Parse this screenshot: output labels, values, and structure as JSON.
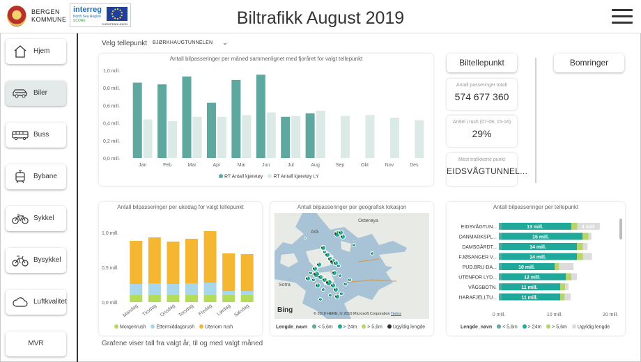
{
  "header": {
    "org_line1": "BERGEN",
    "org_line2": "KOMMUNE",
    "interreg_title": "interreg",
    "interreg_line1": "North Sea Region",
    "interreg_line2": "SCORE",
    "eu_label": "EUROPEAN UNION",
    "title": "Biltrafikk August 2019"
  },
  "nav": [
    {
      "label": "Hjem",
      "icon": "home-icon"
    },
    {
      "label": "Biler",
      "icon": "car-icon"
    },
    {
      "label": "Buss",
      "icon": "bus-icon"
    },
    {
      "label": "Bybane",
      "icon": "tram-icon"
    },
    {
      "label": "Sykkel",
      "icon": "bicycle-icon"
    },
    {
      "label": "Bysykkel",
      "icon": "city-bike-icon"
    },
    {
      "label": "Luftkvalitet",
      "icon": "cloud-icon"
    },
    {
      "label": "MVR",
      "icon": ""
    }
  ],
  "filter": {
    "label": "Velg tellepunkt",
    "value": "BJØRKHAUGTUNNELEN"
  },
  "kpi": {
    "button_cars": "Biltellepunkt",
    "button_toll": "Bomringer",
    "total_label": "Antall passeringer totalt",
    "total_value": "574 677 360",
    "rush_label": "Andel i rush (07-08, 15-16)",
    "rush_value": "29%",
    "top_label": "Mest trafikkerte punkt",
    "top_value": "EIDSVÅGTUNNEL..."
  },
  "footer_note": "Grafene viser tall fra valgt år, til og med valgt måned",
  "colors": {
    "teal": "#5ea89f",
    "teal_light": "#dbe9e7",
    "yellow": "#f5b731",
    "lightblue": "#a8d7ec",
    "lightgreen": "#b3dc59",
    "green_mid": "#b6d66b",
    "gray": "#dcdcdc",
    "dark": "#2f2f2f",
    "dark_teal": "#1fa99a"
  },
  "chart_data": [
    {
      "type": "bar",
      "title": "Antall bilpasseringer per måned sammenlignet med fjoråret for valgt tellepunkt",
      "categories": [
        "Jan",
        "Feb",
        "Mar",
        "Apr",
        "Mai",
        "Jun",
        "Jul",
        "Aug",
        "Sep",
        "Okt",
        "Nov",
        "Des"
      ],
      "y_ticks": [
        "1,0 mill.",
        "0,8 mill.",
        "0,6 mill.",
        "0,4 mill.",
        "0,2 mill.",
        "0,0 mill."
      ],
      "ylim": [
        0,
        1.0
      ],
      "series": [
        {
          "name": "RT Antall kjøretøy",
          "values": [
            0.86,
            0.84,
            0.93,
            0.63,
            0.89,
            0.95,
            0.47,
            0.51,
            null,
            null,
            null,
            null
          ]
        },
        {
          "name": "RT Antall kjøretøy LY",
          "values": [
            0.44,
            0.42,
            0.47,
            0.47,
            0.49,
            0.52,
            0.48,
            0.54,
            0.48,
            0.49,
            0.46,
            0.43
          ]
        }
      ]
    },
    {
      "type": "bar",
      "stacked": true,
      "title": "Antall bilpasseringer per ukedag for valgt tellepunkt",
      "categories": [
        "Mandag",
        "Tirsdag",
        "Onsdag",
        "Torsdag",
        "Fredag",
        "Lørdag",
        "Søndag"
      ],
      "y_ticks": [
        "1,0 mill.",
        "0,5 mill.",
        "0,0 mill."
      ],
      "ylim": [
        0,
        1.0
      ],
      "series": [
        {
          "name": "Morgenrush",
          "values": [
            0.1,
            0.1,
            0.1,
            0.1,
            0.1,
            0.1,
            0.1
          ]
        },
        {
          "name": "Ettermiddagsrush",
          "values": [
            0.16,
            0.17,
            0.16,
            0.17,
            0.18,
            0.06,
            0.06
          ]
        },
        {
          "name": "Utenom rush",
          "values": [
            0.62,
            0.66,
            0.61,
            0.64,
            0.74,
            0.54,
            0.53
          ]
        }
      ]
    },
    {
      "type": "bar",
      "orientation": "horizontal",
      "stacked": true,
      "title": "Antall bilpasseringer per tellepunkt",
      "categories": [
        "EIDSVÅGTUN...",
        "DANMARKSPL...",
        "DAMSGÅRDT...",
        "FJØSANGER V...",
        "PUD.BRU-DA...",
        "UTENFOR LYD...",
        "VÅGSBOTN.",
        "HARAFJELLTU..."
      ],
      "x_ticks": [
        "0 mill.",
        "10 mill.",
        "20 mill."
      ],
      "xlim": [
        0,
        20
      ],
      "data_labels": [
        "13 mill.",
        "15 mill.",
        "14 mill.",
        "14 mill.",
        "10 mill.",
        "12 mill.",
        "11 mill.",
        "11 mill."
      ],
      "last_label": "4 mill.",
      "legend_title": "Lengde_navn",
      "series": [
        {
          "name": "< 5,6m",
          "values": [
            0.4,
            0.4,
            0.4,
            0.4,
            0.4,
            0.4,
            0.4,
            0.4
          ]
        },
        {
          "name": "> 24m",
          "values": [
            12.6,
            14.6,
            13.6,
            13.6,
            9.6,
            11.6,
            10.6,
            10.6
          ]
        },
        {
          "name": "> 5,6m",
          "values": [
            1.1,
            1.1,
            1.1,
            1.1,
            0.8,
            1.0,
            0.9,
            0.8
          ]
        },
        {
          "name": "Ugyldig lengde",
          "values": [
            4.0,
            0.5,
            0.8,
            1.6,
            2.6,
            1.0,
            0.6,
            1.1
          ]
        }
      ]
    }
  ],
  "map": {
    "title": "Antall bilpasseringer per geografisk lokasjon",
    "labels": [
      "Osterøya",
      "Ask",
      "Sotra"
    ],
    "attribution": "© 2019 HERE, © 2019 Microsoft Corporation",
    "terms": "Terms",
    "bing": "Bing",
    "legend_title": "Lengde_navn",
    "legend": [
      "< 5,6m",
      "> 24m",
      "> 5,6m",
      "Ugyldig lengde"
    ]
  }
}
